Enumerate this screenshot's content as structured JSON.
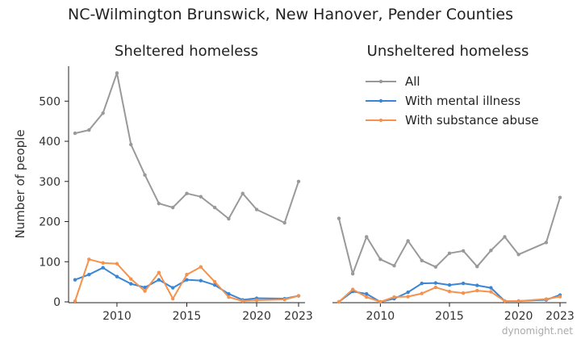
{
  "title": "NC-Wilmington Brunswick, New Hanover, Pender Counties",
  "watermark": "dynomight.net",
  "colors": {
    "all": "#999999",
    "mental": "#3a86d4",
    "substance": "#f4924e",
    "axis": "#222222"
  },
  "chart_data": {
    "type": "line",
    "ylabel": "Number of people",
    "ylim": [
      0,
      575
    ],
    "yticks": [
      0,
      100,
      200,
      300,
      400,
      500
    ],
    "xlim": [
      2007,
      2023
    ],
    "xticks": [
      2010,
      2015,
      2020,
      2023
    ],
    "legend": {
      "placement": "top-right",
      "entries": [
        "All",
        "With mental illness",
        "With substance abuse"
      ]
    },
    "panels": [
      {
        "title": "Sheltered homeless",
        "series": [
          {
            "name": "All",
            "color_key": "all",
            "x": [
              2007,
              2008,
              2009,
              2010,
              2011,
              2012,
              2013,
              2014,
              2015,
              2016,
              2017,
              2018,
              2019,
              2020,
              2022,
              2023
            ],
            "y": [
              420,
              428,
              470,
              570,
              392,
              316,
              245,
              235,
              270,
              262,
              235,
              207,
              270,
              230,
              197,
              300
            ]
          },
          {
            "name": "With mental illness",
            "color_key": "mental",
            "x": [
              2007,
              2008,
              2009,
              2010,
              2011,
              2012,
              2013,
              2014,
              2015,
              2016,
              2017,
              2018,
              2019,
              2020,
              2022,
              2023
            ],
            "y": [
              55,
              68,
              85,
              63,
              45,
              36,
              55,
              35,
              55,
              53,
              42,
              20,
              5,
              9,
              8,
              15
            ]
          },
          {
            "name": "With substance abuse",
            "color_key": "substance",
            "x": [
              2007,
              2008,
              2009,
              2010,
              2011,
              2012,
              2013,
              2014,
              2015,
              2016,
              2017,
              2018,
              2019,
              2020,
              2022,
              2023
            ],
            "y": [
              2,
              106,
              97,
              95,
              57,
              27,
              73,
              8,
              68,
              87,
              50,
              12,
              2,
              4,
              6,
              15
            ]
          }
        ]
      },
      {
        "title": "Unsheltered homeless",
        "series": [
          {
            "name": "All",
            "color_key": "all",
            "x": [
              2007,
              2008,
              2009,
              2010,
              2011,
              2012,
              2013,
              2014,
              2015,
              2016,
              2017,
              2018,
              2019,
              2020,
              2022,
              2023
            ],
            "y": [
              208,
              70,
              162,
              106,
              90,
              152,
              103,
              87,
              121,
              127,
              88,
              128,
              162,
              118,
              148,
              260
            ]
          },
          {
            "name": "With mental illness",
            "color_key": "mental",
            "x": [
              2007,
              2008,
              2009,
              2010,
              2011,
              2012,
              2013,
              2014,
              2015,
              2016,
              2017,
              2018,
              2019,
              2020,
              2022,
              2023
            ],
            "y": [
              0,
              26,
              20,
              0,
              8,
              24,
              46,
              47,
              42,
              46,
              41,
              35,
              2,
              2,
              5,
              17
            ]
          },
          {
            "name": "With substance abuse",
            "color_key": "substance",
            "x": [
              2007,
              2008,
              2009,
              2010,
              2011,
              2012,
              2013,
              2014,
              2015,
              2016,
              2017,
              2018,
              2019,
              2020,
              2022,
              2023
            ],
            "y": [
              0,
              31,
              12,
              0,
              12,
              13,
              21,
              36,
              26,
              22,
              28,
              25,
              2,
              2,
              7,
              13
            ]
          }
        ]
      }
    ]
  }
}
